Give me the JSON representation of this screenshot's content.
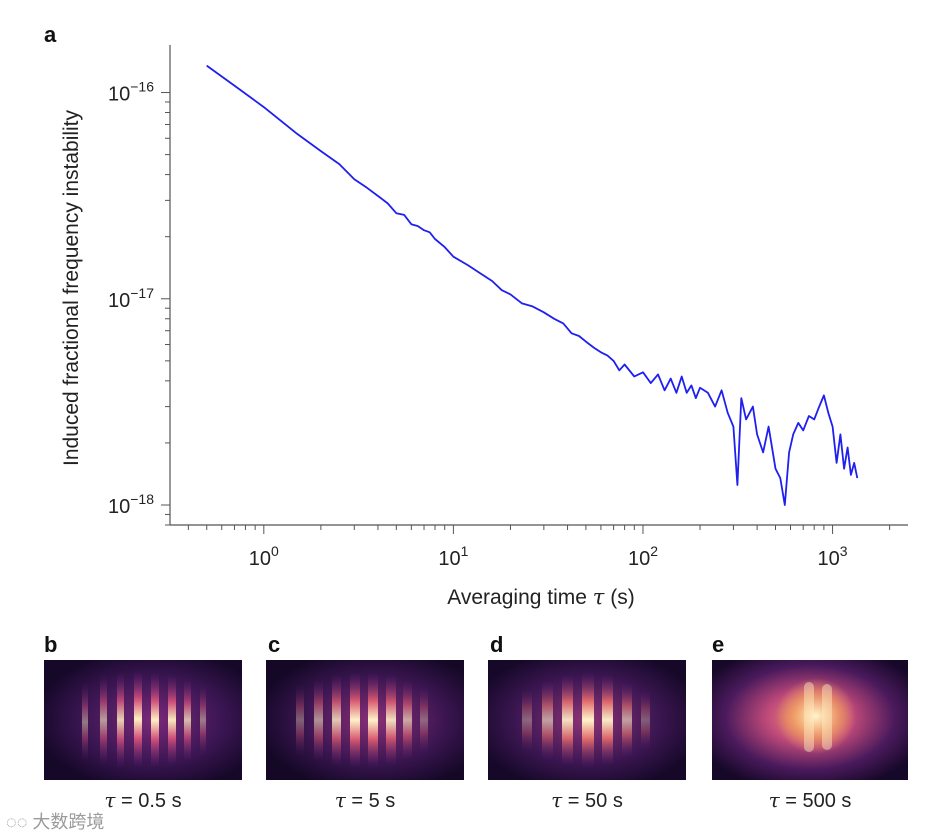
{
  "figure": {
    "panel_a": {
      "letter": "a"
    },
    "panels": [
      {
        "letter": "b",
        "tau_value": "0.5 s"
      },
      {
        "letter": "c",
        "tau_value": "5 s"
      },
      {
        "letter": "d",
        "tau_value": "50 s"
      },
      {
        "letter": "e",
        "tau_value": "500 s"
      }
    ],
    "tau_symbol": "τ",
    "tau_eq": " = ",
    "watermark": "大数跨境"
  },
  "chart_data": {
    "type": "line",
    "title": "",
    "xlabel": "Averaging time",
    "xlabel_symbol": "τ",
    "xlabel_unit": " (s)",
    "ylabel": "Induced fractional frequency instability",
    "xscale": "log",
    "yscale": "log",
    "xlim": [
      0.32,
      2500
    ],
    "ylim": [
      8e-19,
      1.7e-16
    ],
    "xticks": [
      {
        "value": 1,
        "exp": "0"
      },
      {
        "value": 10,
        "exp": "1"
      },
      {
        "value": 100,
        "exp": "2"
      },
      {
        "value": 1000,
        "exp": "3"
      }
    ],
    "yticks": [
      {
        "value": 1e-16,
        "exp": "−16"
      },
      {
        "value": 1e-17,
        "exp": "−17"
      },
      {
        "value": 1e-18,
        "exp": "−18"
      }
    ],
    "tick_base": "10",
    "color": "#1f1ff0",
    "series": [
      {
        "name": "instability",
        "x": [
          0.5,
          0.7,
          1.0,
          1.5,
          2.0,
          2.5,
          3.0,
          3.5,
          4.0,
          4.5,
          5.0,
          5.5,
          6.0,
          6.5,
          7.0,
          7.5,
          8.0,
          9.0,
          10,
          12,
          14,
          16,
          18,
          20,
          23,
          26,
          30,
          34,
          38,
          42,
          46,
          50,
          55,
          60,
          65,
          70,
          75,
          80,
          90,
          100,
          110,
          120,
          130,
          140,
          150,
          160,
          170,
          180,
          190,
          200,
          220,
          240,
          260,
          280,
          300,
          315,
          330,
          350,
          380,
          400,
          430,
          460,
          500,
          530,
          560,
          590,
          620,
          660,
          700,
          750,
          800,
          850,
          900,
          950,
          1000,
          1050,
          1100,
          1150,
          1200,
          1250,
          1300,
          1350
        ],
        "y": [
          1.35e-16,
          1.08e-16,
          8.5e-17,
          6.3e-17,
          5.2e-17,
          4.5e-17,
          3.8e-17,
          3.45e-17,
          3.15e-17,
          2.9e-17,
          2.6e-17,
          2.55e-17,
          2.3e-17,
          2.25e-17,
          2.15e-17,
          2.1e-17,
          1.95e-17,
          1.78e-17,
          1.6e-17,
          1.45e-17,
          1.32e-17,
          1.22e-17,
          1.1e-17,
          1.05e-17,
          9.5e-18,
          9.2e-18,
          8.6e-18,
          8e-18,
          7.6e-18,
          6.8e-18,
          6.6e-18,
          6.2e-18,
          5.8e-18,
          5.5e-18,
          5.3e-18,
          5e-18,
          4.5e-18,
          4.8e-18,
          4.2e-18,
          4.4e-18,
          3.9e-18,
          4.3e-18,
          3.6e-18,
          4.1e-18,
          3.5e-18,
          4.2e-18,
          3.5e-18,
          3.8e-18,
          3.3e-18,
          3.7e-18,
          3.5e-18,
          3e-18,
          3.6e-18,
          2.8e-18,
          2.4e-18,
          1.25e-18,
          3.3e-18,
          2.6e-18,
          3e-18,
          2.2e-18,
          1.8e-18,
          2.4e-18,
          1.5e-18,
          1.35e-18,
          1e-18,
          1.8e-18,
          2.2e-18,
          2.5e-18,
          2.3e-18,
          2.7e-18,
          2.6e-18,
          3e-18,
          3.4e-18,
          2.8e-18,
          2.4e-18,
          1.6e-18,
          2.2e-18,
          1.5e-18,
          1.9e-18,
          1.4e-18,
          1.6e-18,
          1.35e-18
        ]
      }
    ]
  }
}
